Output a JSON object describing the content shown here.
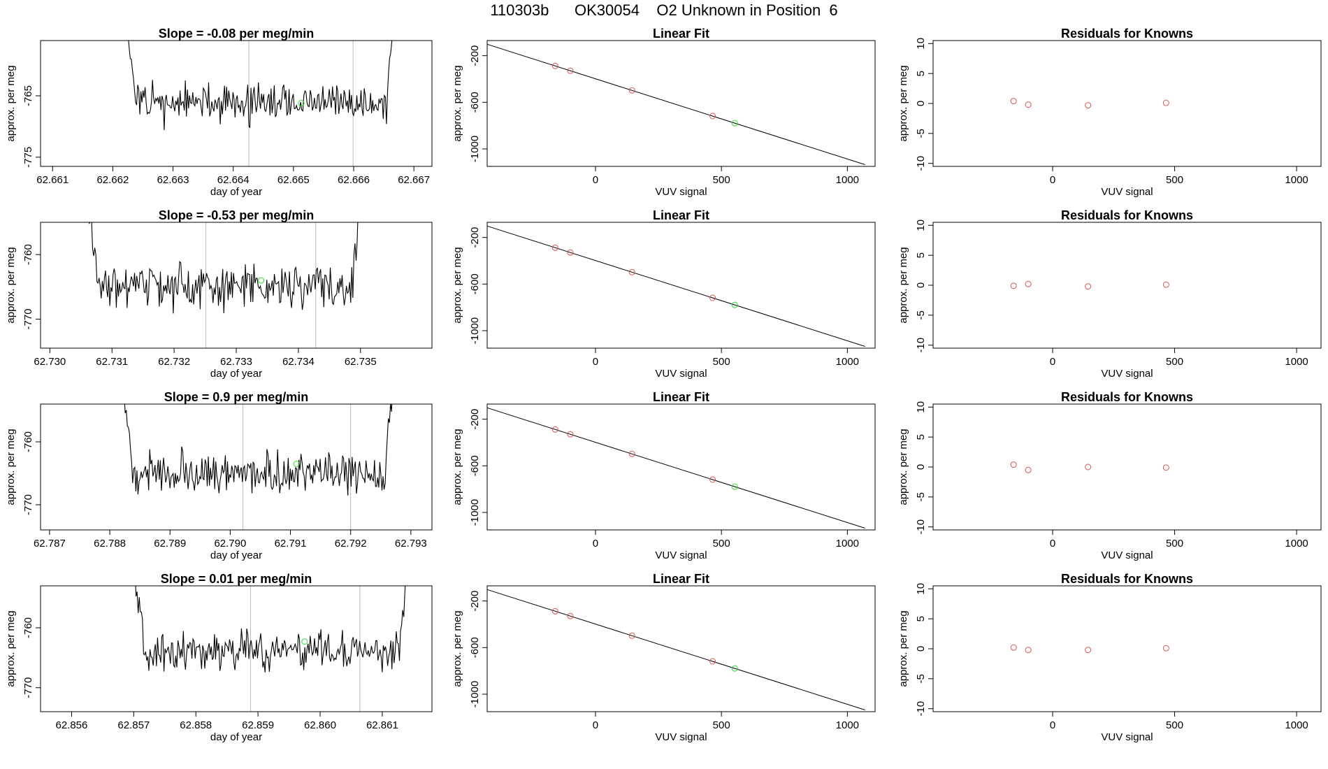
{
  "header": {
    "title": "110303b      OK30054    O2 Unknown in Position  6"
  },
  "colors": {
    "trace": "#000000",
    "known_points": "#d9534f",
    "unknown_point": "#33dd33",
    "vline": "#bbbbbb",
    "fit_line": "#000000"
  },
  "common": {
    "ts_ylabel": "approx. per meg",
    "ts_xlabel": "day of year",
    "fit_title": "Linear Fit",
    "fit_xlabel": "VUV signal",
    "fit_ylabel": "approx. per meg",
    "resid_title": "Residuals for Knowns",
    "resid_xlabel": "VUV signal",
    "resid_ylabel": "approx. per meg"
  },
  "chart_data": [
    {
      "type": "line",
      "title": "Slope =  -0.08  per meg/min",
      "xlim": [
        62.6608,
        62.6673
      ],
      "ylim": [
        -776.5,
        -756
      ],
      "xticks": [
        "62.661",
        "62.662",
        "62.663",
        "62.664",
        "62.665",
        "62.666",
        "62.667"
      ],
      "yticks": [
        "-765",
        "-775"
      ],
      "vlines": [
        62.66426,
        62.66599
      ],
      "x_start": 62.66215,
      "x_end": 62.66672,
      "base": -766.2,
      "amp": 1.9,
      "seed": 11,
      "unknown_point": {
        "x": 62.66513,
        "y": -766.2
      }
    },
    {
      "type": "line",
      "title": "Slope =  -0.53  per meg/min",
      "xlim": [
        62.72985,
        62.73615
      ],
      "ylim": [
        -774.5,
        -755
      ],
      "xticks": [
        "62.730",
        "62.731",
        "62.732",
        "62.733",
        "62.734",
        "62.735"
      ],
      "yticks": [
        "-760",
        "-770"
      ],
      "vlines": [
        62.73251,
        62.73428
      ],
      "x_start": 62.73055,
      "x_end": 62.73505,
      "base": -765.0,
      "amp": 2.0,
      "seed": 23,
      "unknown_point": {
        "x": 62.7334,
        "y": -764.0
      }
    },
    {
      "type": "line",
      "title": "Slope =  0.9  per meg/min",
      "xlim": [
        62.78685,
        62.79335
      ],
      "ylim": [
        -774,
        -754
      ],
      "xticks": [
        "62.787",
        "62.788",
        "62.789",
        "62.790",
        "62.791",
        "62.792",
        "62.793"
      ],
      "yticks": [
        "-760",
        "-770"
      ],
      "vlines": [
        62.79021,
        62.792
      ],
      "x_start": 62.78815,
      "x_end": 62.79275,
      "base": -765.0,
      "amp": 2.0,
      "seed": 37,
      "unknown_point": {
        "x": 62.7911,
        "y": -763.5
      }
    },
    {
      "type": "line",
      "title": "Slope =  0.01  per meg/min",
      "xlim": [
        62.8555,
        62.8618
      ],
      "ylim": [
        -774,
        -753
      ],
      "xticks": [
        "62.856",
        "62.857",
        "62.858",
        "62.859",
        "62.860",
        "62.861"
      ],
      "yticks": [
        "-760",
        "-770"
      ],
      "vlines": [
        62.85888,
        62.86064
      ],
      "x_start": 62.85695,
      "x_end": 62.86145,
      "base": -764.0,
      "amp": 2.0,
      "seed": 51,
      "unknown_point": {
        "x": 62.85975,
        "y": -762.3
      }
    }
  ],
  "fit_data": [
    {
      "type": "scatter",
      "xlim": [
        -430,
        1110
      ],
      "ylim": [
        -1150,
        -70
      ],
      "xticks": [
        "0",
        "500",
        "1000"
      ],
      "yticks": [
        "-200",
        "-600",
        "-1000"
      ],
      "line": {
        "x": [
          -430,
          1070
        ],
        "y": [
          -102,
          -1135
        ]
      },
      "knowns": [
        {
          "x": -160,
          "y": -288
        },
        {
          "x": -100,
          "y": -329
        },
        {
          "x": 145,
          "y": -498
        },
        {
          "x": 465,
          "y": -718
        }
      ],
      "unknown": {
        "x": 553,
        "y": -779
      }
    },
    {
      "type": "scatter",
      "xlim": [
        -430,
        1110
      ],
      "ylim": [
        -1150,
        -70
      ],
      "xticks": [
        "0",
        "500",
        "1000"
      ],
      "yticks": [
        "-200",
        "-600",
        "-1000"
      ],
      "line": {
        "x": [
          -430,
          1070
        ],
        "y": [
          -102,
          -1135
        ]
      },
      "knowns": [
        {
          "x": -160,
          "y": -288
        },
        {
          "x": -100,
          "y": -329
        },
        {
          "x": 145,
          "y": -498
        },
        {
          "x": 465,
          "y": -718
        }
      ],
      "unknown": {
        "x": 553,
        "y": -779
      }
    },
    {
      "type": "scatter",
      "xlim": [
        -430,
        1110
      ],
      "ylim": [
        -1150,
        -70
      ],
      "xticks": [
        "0",
        "500",
        "1000"
      ],
      "yticks": [
        "-200",
        "-600",
        "-1000"
      ],
      "line": {
        "x": [
          -430,
          1070
        ],
        "y": [
          -102,
          -1135
        ]
      },
      "knowns": [
        {
          "x": -160,
          "y": -288
        },
        {
          "x": -100,
          "y": -329
        },
        {
          "x": 145,
          "y": -498
        },
        {
          "x": 465,
          "y": -718
        }
      ],
      "unknown": {
        "x": 553,
        "y": -779
      }
    },
    {
      "type": "scatter",
      "xlim": [
        -430,
        1110
      ],
      "ylim": [
        -1150,
        -70
      ],
      "xticks": [
        "0",
        "500",
        "1000"
      ],
      "yticks": [
        "-200",
        "-600",
        "-1000"
      ],
      "line": {
        "x": [
          -430,
          1070
        ],
        "y": [
          -102,
          -1135
        ]
      },
      "knowns": [
        {
          "x": -160,
          "y": -288
        },
        {
          "x": -100,
          "y": -329
        },
        {
          "x": 145,
          "y": -498
        },
        {
          "x": 465,
          "y": -718
        }
      ],
      "unknown": {
        "x": 553,
        "y": -779
      }
    }
  ],
  "resid_data": [
    {
      "type": "scatter",
      "xlim": [
        -490,
        1100
      ],
      "ylim": [
        -10.5,
        10.5
      ],
      "xticks": [
        "0",
        "500",
        "1000"
      ],
      "yticks": [
        "-10",
        "-5",
        "0",
        "5",
        "10"
      ],
      "points": [
        {
          "x": -160,
          "y": 0.4
        },
        {
          "x": -100,
          "y": -0.2
        },
        {
          "x": 145,
          "y": -0.3
        },
        {
          "x": 465,
          "y": 0.1
        }
      ]
    },
    {
      "type": "scatter",
      "xlim": [
        -490,
        1100
      ],
      "ylim": [
        -10.5,
        10.5
      ],
      "xticks": [
        "0",
        "500",
        "1000"
      ],
      "yticks": [
        "-10",
        "-5",
        "0",
        "5",
        "10"
      ],
      "points": [
        {
          "x": -160,
          "y": -0.1
        },
        {
          "x": -100,
          "y": 0.2
        },
        {
          "x": 145,
          "y": -0.2
        },
        {
          "x": 465,
          "y": 0.1
        }
      ]
    },
    {
      "type": "scatter",
      "xlim": [
        -490,
        1100
      ],
      "ylim": [
        -10.5,
        10.5
      ],
      "xticks": [
        "0",
        "500",
        "1000"
      ],
      "yticks": [
        "-10",
        "-5",
        "0",
        "5",
        "10"
      ],
      "points": [
        {
          "x": -160,
          "y": 0.4
        },
        {
          "x": -100,
          "y": -0.5
        },
        {
          "x": 145,
          "y": 0.0
        },
        {
          "x": 465,
          "y": -0.1
        }
      ]
    },
    {
      "type": "scatter",
      "xlim": [
        -490,
        1100
      ],
      "ylim": [
        -10.5,
        10.5
      ],
      "xticks": [
        "0",
        "500",
        "1000"
      ],
      "yticks": [
        "-10",
        "-5",
        "0",
        "5",
        "10"
      ],
      "points": [
        {
          "x": -160,
          "y": 0.2
        },
        {
          "x": -100,
          "y": -0.2
        },
        {
          "x": 145,
          "y": -0.2
        },
        {
          "x": 465,
          "y": 0.1
        }
      ]
    }
  ]
}
